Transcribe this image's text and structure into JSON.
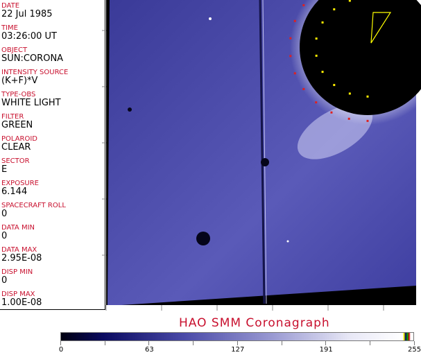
{
  "header_fields": [
    {
      "label": "DATE",
      "value": "22 Jul 1985"
    },
    {
      "label": "TIME",
      "value": "03:26:00 UT"
    },
    {
      "label": "OBJECT",
      "value": "SUN:CORONA"
    },
    {
      "label": "INTENSITY SOURCE",
      "value": "(K+F)*V"
    },
    {
      "label": "TYPE-OBS",
      "value": "WHITE LIGHT"
    },
    {
      "label": "FILTER",
      "value": "GREEN"
    },
    {
      "label": "POLAROID",
      "value": "CLEAR"
    },
    {
      "label": "SECTOR",
      "value": "E"
    },
    {
      "label": "EXPOSURE",
      "value": "6.144"
    },
    {
      "label": "SPACECRAFT ROLL",
      "value": "0"
    },
    {
      "label": "DATA MIN",
      "value": "0"
    },
    {
      "label": "DATA MAX",
      "value": "2.95E-08"
    },
    {
      "label": "DISP MIN",
      "value": "0"
    },
    {
      "label": "DISP MAX",
      "value": "1.00E-08"
    }
  ],
  "title": "HAO  SMM  Coronagraph",
  "colorbar": {
    "ticks": [
      "0",
      "63",
      "127",
      "191",
      "255"
    ],
    "colors": {
      "low": "#000010",
      "mid": "#4a4aa8",
      "high": "#ffffff"
    }
  }
}
